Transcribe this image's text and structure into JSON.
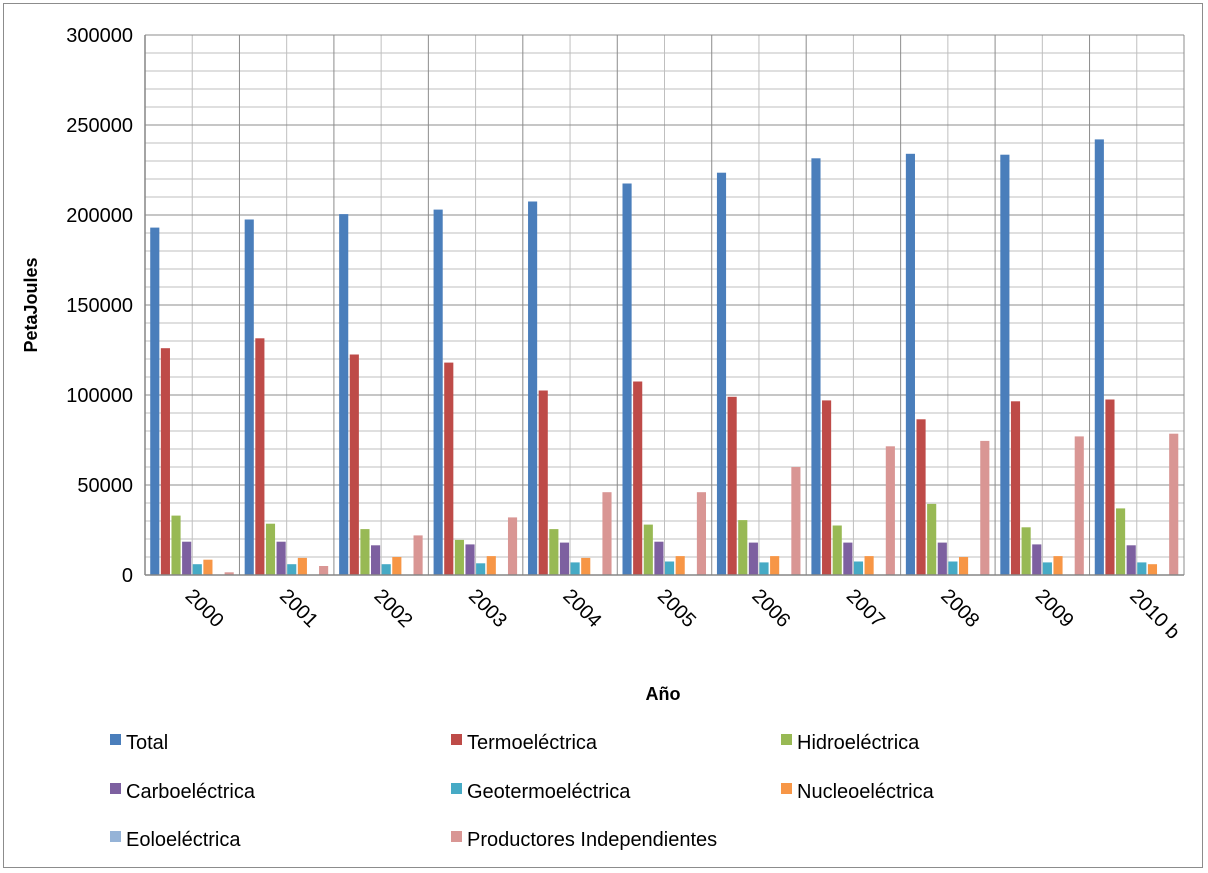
{
  "chart_data": {
    "type": "bar",
    "title": "",
    "xlabel": "Año",
    "ylabel": "PetaJoules",
    "ylim": [
      0,
      300000
    ],
    "yticks": [
      0,
      50000,
      100000,
      150000,
      200000,
      250000,
      300000
    ],
    "ytick_labels": [
      "0",
      "50000",
      "100000",
      "150000",
      "200000",
      "250000",
      "300000"
    ],
    "grid": true,
    "legend_position": "bottom",
    "categories": [
      "2000",
      "2001",
      "2002",
      "2003",
      "2004",
      "2005",
      "2006",
      "2007",
      "2008",
      "2009",
      "2010 b"
    ],
    "series": [
      {
        "name": "Total",
        "color": "#4a7ebb",
        "values": [
          193000,
          197500,
          200500,
          203000,
          207500,
          217500,
          223500,
          231500,
          234000,
          233500,
          242000
        ]
      },
      {
        "name": "Termoeléctrica",
        "color": "#be4b48",
        "values": [
          126000,
          131500,
          122500,
          118000,
          102500,
          107500,
          99000,
          97000,
          86500,
          96500,
          97500
        ]
      },
      {
        "name": "Hidroeléctrica",
        "color": "#98b954",
        "values": [
          33000,
          28500,
          25500,
          19500,
          25500,
          28000,
          30500,
          27500,
          39500,
          26500,
          37000
        ]
      },
      {
        "name": "Carboeléctrica",
        "color": "#7d60a0",
        "values": [
          18500,
          18500,
          16500,
          17000,
          18000,
          18500,
          18000,
          18000,
          18000,
          17000,
          16500
        ]
      },
      {
        "name": "Geotermoeléctrica",
        "color": "#46aac5",
        "values": [
          6000,
          6000,
          6000,
          6500,
          7000,
          7500,
          7000,
          7500,
          7500,
          7000,
          7000
        ]
      },
      {
        "name": "Nucleoeléctrica",
        "color": "#f79646",
        "values": [
          8500,
          9500,
          10000,
          10500,
          9500,
          10500,
          10500,
          10500,
          10000,
          10500,
          6000
        ]
      },
      {
        "name": "Eoloeléctrica",
        "color": "#95b3d7",
        "values": [
          0,
          0,
          0,
          0,
          0,
          0,
          0,
          0,
          0,
          0,
          0
        ]
      },
      {
        "name": "Productores Independientes",
        "color": "#d99694",
        "values": [
          1500,
          5000,
          22000,
          32000,
          46000,
          46000,
          60000,
          71500,
          74500,
          77000,
          78500
        ]
      }
    ]
  }
}
